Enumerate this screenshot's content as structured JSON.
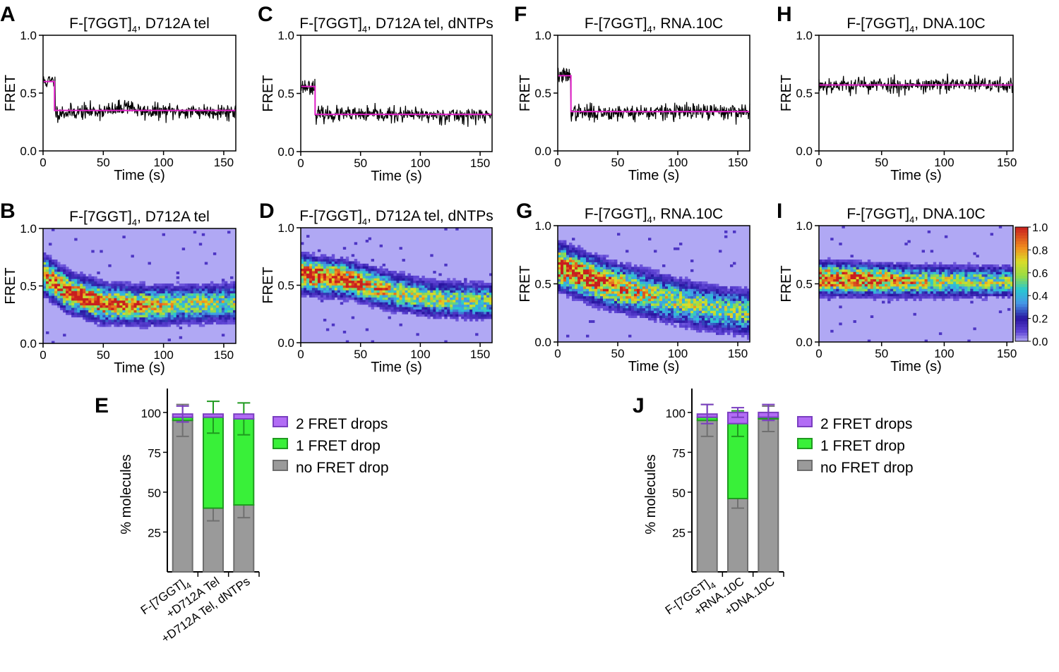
{
  "colors": {
    "fit_line": "#e020c8",
    "trace": "#000000",
    "heat_bg": "#b0a8f4",
    "drop2": "#b26cf5",
    "drop1": "#39f039",
    "nodrop": "#9a9a9a",
    "drop2_edge": "#7a3fc0",
    "drop1_edge": "#1f9a1f",
    "nodrop_edge": "#6e6e6e",
    "errorbar": "#707070"
  },
  "chart_data": [
    {
      "id": "trace-A",
      "panel": "A",
      "type": "line",
      "title_main": "F-[7GGT]",
      "title_sub": "4",
      "title_rest": ", D712A tel",
      "xlabel": "Time (s)",
      "ylabel": "FRET",
      "xlim": [
        0,
        160
      ],
      "ylim": [
        0,
        1
      ],
      "xticks": [
        "0",
        "50",
        "100",
        "150"
      ],
      "yticks": [
        "0.0",
        "0.5",
        "1.0"
      ],
      "series": [
        {
          "name": "smFRET trace",
          "style": "noisy",
          "noise": 0.035,
          "seed": 11,
          "x": [
            0,
            10,
            10.01,
            60,
            70,
            80,
            160
          ],
          "y": [
            0.6,
            0.6,
            0.33,
            0.35,
            0.4,
            0.34,
            0.34
          ]
        },
        {
          "name": "HMM fit",
          "style": "step",
          "x": [
            0,
            9.5,
            9.5,
            160
          ],
          "y": [
            0.6,
            0.6,
            0.35,
            0.35
          ]
        }
      ]
    },
    {
      "id": "trace-C",
      "panel": "C",
      "type": "line",
      "title_main": "F-[7GGT]",
      "title_sub": "4",
      "title_rest": ", D712A tel, dNTPs",
      "xlabel": "Time (s)",
      "ylabel": "FRET",
      "xlim": [
        0,
        160
      ],
      "ylim": [
        0,
        1
      ],
      "xticks": [
        "0",
        "50",
        "100",
        "150"
      ],
      "yticks": [
        "0.0",
        "0.5",
        "1.0"
      ],
      "series": [
        {
          "name": "smFRET trace",
          "style": "noisy",
          "noise": 0.033,
          "seed": 23,
          "x": [
            0,
            12,
            12.01,
            160
          ],
          "y": [
            0.56,
            0.56,
            0.32,
            0.31
          ]
        },
        {
          "name": "HMM fit",
          "style": "step",
          "x": [
            0,
            12,
            12,
            160
          ],
          "y": [
            0.56,
            0.56,
            0.32,
            0.32
          ]
        }
      ]
    },
    {
      "id": "trace-F",
      "panel": "F",
      "type": "line",
      "title_main": "F-[7GGT]",
      "title_sub": "4",
      "title_rest": ", RNA.10C",
      "xlabel": "Time (s)",
      "ylabel": "FRET",
      "xlim": [
        0,
        160
      ],
      "ylim": [
        0,
        1
      ],
      "xticks": [
        "0",
        "50",
        "100",
        "150"
      ],
      "yticks": [
        "0.0",
        "0.5",
        "1.0"
      ],
      "series": [
        {
          "name": "smFRET trace",
          "style": "noisy",
          "noise": 0.036,
          "seed": 37,
          "x": [
            0,
            11,
            11.01,
            160
          ],
          "y": [
            0.65,
            0.65,
            0.33,
            0.34
          ]
        },
        {
          "name": "HMM fit",
          "style": "step",
          "x": [
            0,
            11,
            11,
            160
          ],
          "y": [
            0.65,
            0.65,
            0.34,
            0.34
          ]
        }
      ]
    },
    {
      "id": "trace-H",
      "panel": "H",
      "type": "line",
      "title_main": "F-[7GGT]",
      "title_sub": "4",
      "title_rest": ", DNA.10C",
      "xlabel": "Time (s)",
      "ylabel": "FRET",
      "xlim": [
        0,
        155
      ],
      "ylim": [
        0,
        1
      ],
      "xticks": [
        "0",
        "50",
        "100",
        "150"
      ],
      "yticks": [
        "0.0",
        "0.5",
        "1.0"
      ],
      "series": [
        {
          "name": "smFRET trace",
          "style": "noisy",
          "noise": 0.036,
          "seed": 53,
          "x": [
            0,
            155
          ],
          "y": [
            0.57,
            0.57
          ]
        },
        {
          "name": "HMM fit",
          "style": "step",
          "x": [
            0,
            155
          ],
          "y": [
            0.57,
            0.57
          ]
        }
      ]
    },
    {
      "id": "heat-B",
      "panel": "B",
      "type": "heatmap",
      "title_main": "F-[7GGT]",
      "title_sub": "4",
      "title_rest": ", D712A tel",
      "xlabel": "Time (s)",
      "ylabel": "FRET",
      "xlim": [
        0,
        160
      ],
      "ylim": [
        0,
        1
      ],
      "xticks": [
        "0",
        "50",
        "100",
        "150"
      ],
      "yticks": [
        "0.0",
        "0.5",
        "1.0"
      ],
      "ridge": [
        [
          0,
          0.6
        ],
        [
          20,
          0.45
        ],
        [
          50,
          0.35
        ],
        [
          90,
          0.33
        ],
        [
          160,
          0.36
        ]
      ],
      "spread": 0.085,
      "peak_time": 30,
      "seed": 101
    },
    {
      "id": "heat-D",
      "panel": "D",
      "type": "heatmap",
      "title_main": "F-[7GGT]",
      "title_sub": "4",
      "title_rest": ", D712A tel, dNTPs",
      "xlabel": "Time (s)",
      "ylabel": "FRET",
      "xlim": [
        0,
        160
      ],
      "ylim": [
        0,
        1
      ],
      "xticks": [
        "0",
        "50",
        "100",
        "150"
      ],
      "yticks": [
        "0.0",
        "0.5",
        "1.0"
      ],
      "ridge": [
        [
          0,
          0.6
        ],
        [
          40,
          0.55
        ],
        [
          75,
          0.45
        ],
        [
          110,
          0.38
        ],
        [
          160,
          0.36
        ]
      ],
      "spread": 0.08,
      "peak_time": 15,
      "seed": 131
    },
    {
      "id": "heat-G",
      "panel": "G",
      "type": "heatmap",
      "title_main": "F-[7GGT]",
      "title_sub": "4",
      "title_rest": ", RNA.10C",
      "xlabel": "Time (s)",
      "ylabel": "FRET",
      "xlim": [
        0,
        160
      ],
      "ylim": [
        0,
        1
      ],
      "xticks": [
        "0",
        "50",
        "100",
        "150"
      ],
      "yticks": [
        "0.0",
        "0.5",
        "1.0"
      ],
      "ridge": [
        [
          0,
          0.65
        ],
        [
          40,
          0.5
        ],
        [
          80,
          0.4
        ],
        [
          120,
          0.3
        ],
        [
          160,
          0.25
        ]
      ],
      "spread": 0.1,
      "peak_time": 10,
      "seed": 157
    },
    {
      "id": "heat-I",
      "panel": "I",
      "type": "heatmap",
      "title_main": "F-[7GGT]",
      "title_sub": "4",
      "title_rest": ", DNA.10C",
      "xlabel": "Time (s)",
      "ylabel": "FRET",
      "xlim": [
        0,
        155
      ],
      "ylim": [
        0,
        1
      ],
      "xticks": [
        "0",
        "50",
        "100",
        "150"
      ],
      "yticks": [
        "0.0",
        "0.5",
        "1.0"
      ],
      "ridge": [
        [
          0,
          0.55
        ],
        [
          80,
          0.52
        ],
        [
          155,
          0.52
        ]
      ],
      "spread": 0.07,
      "peak_time": 15,
      "seed": 173,
      "colorbar": {
        "ticks": [
          "1.0",
          "0.8",
          "0.6",
          "0.4",
          "0.2",
          "0.0"
        ]
      }
    },
    {
      "id": "bars-E",
      "panel": "E",
      "type": "bar",
      "ylabel": "% molecules",
      "ylim": [
        0,
        115
      ],
      "yticks": [
        "25",
        "50",
        "75",
        "100"
      ],
      "categories": [
        {
          "main": "F-[7GGT]",
          "sub": "4"
        },
        {
          "main": "+D712A Tel",
          "sub": ""
        },
        {
          "main": "+D712A Tel, dNTPs",
          "sub": ""
        }
      ],
      "series": [
        {
          "name": "no FRET drop",
          "values": [
            95,
            40,
            42
          ],
          "errors": [
            10,
            8,
            8
          ]
        },
        {
          "name": "1 FRET drop",
          "values": [
            2,
            57,
            54
          ],
          "errors": [
            0,
            10,
            10
          ]
        },
        {
          "name": "2 FRET drops",
          "values": [
            2,
            2,
            3
          ],
          "errors": [
            5,
            0,
            0
          ]
        }
      ],
      "legend": [
        "2 FRET drops",
        "1 FRET drop",
        "no FRET drop"
      ]
    },
    {
      "id": "bars-J",
      "panel": "J",
      "type": "bar",
      "ylabel": "% molecules",
      "ylim": [
        0,
        115
      ],
      "yticks": [
        "25",
        "50",
        "75",
        "100"
      ],
      "categories": [
        {
          "main": "F-[7GGT]",
          "sub": "4"
        },
        {
          "main": "+RNA.10C",
          "sub": ""
        },
        {
          "main": "+DNA.10C",
          "sub": ""
        }
      ],
      "series": [
        {
          "name": "no FRET drop",
          "values": [
            95,
            46,
            96
          ],
          "errors": [
            10,
            6,
            8
          ]
        },
        {
          "name": "1 FRET drop",
          "values": [
            2,
            47,
            1
          ],
          "errors": [
            0,
            8,
            0
          ]
        },
        {
          "name": "2 FRET drops",
          "values": [
            2,
            7,
            3
          ],
          "errors": [
            6,
            3,
            5
          ]
        }
      ],
      "legend": [
        "2 FRET drops",
        "1 FRET drop",
        "no FRET drop"
      ]
    }
  ]
}
